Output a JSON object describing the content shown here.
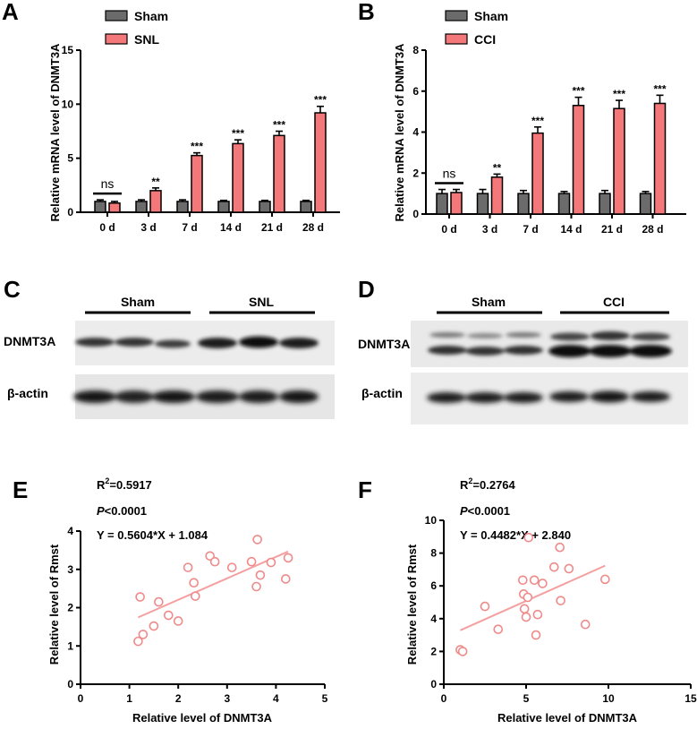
{
  "panels": {
    "a": "A",
    "b": "B",
    "c": "C",
    "d": "D",
    "e": "E",
    "f": "F"
  },
  "colors": {
    "sham": "#6b6b6b",
    "treat": "#f4777a",
    "scatter": "#f08a8a",
    "line": "#f4a0a0"
  },
  "chart_data": [
    {
      "id": "A",
      "type": "bar",
      "categories": [
        "0 d",
        "3 d",
        "7 d",
        "14 d",
        "21 d",
        "28 d"
      ],
      "series": [
        {
          "name": "Sham",
          "values": [
            1.0,
            1.0,
            1.0,
            1.0,
            1.0,
            1.0
          ],
          "errors": [
            0.15,
            0.15,
            0.15,
            0.1,
            0.1,
            0.1
          ]
        },
        {
          "name": "SNL",
          "values": [
            0.85,
            2.0,
            5.25,
            6.35,
            7.1,
            9.2
          ],
          "errors": [
            0.15,
            0.25,
            0.25,
            0.35,
            0.4,
            0.6
          ]
        }
      ],
      "significance": [
        "ns",
        "**",
        "***",
        "***",
        "***",
        "***"
      ],
      "ylabel": "Relative mRNA level of DNMT3A",
      "ylim": [
        0,
        15
      ],
      "yticks": [
        "0",
        "5",
        "10",
        "15"
      ]
    },
    {
      "id": "B",
      "type": "bar",
      "categories": [
        "0 d",
        "3 d",
        "7 d",
        "14 d",
        "21 d",
        "28 d"
      ],
      "series": [
        {
          "name": "Sham",
          "values": [
            1.0,
            1.0,
            1.0,
            1.0,
            1.0,
            1.0
          ],
          "errors": [
            0.2,
            0.2,
            0.15,
            0.1,
            0.15,
            0.1
          ]
        },
        {
          "name": "CCI",
          "values": [
            1.05,
            1.8,
            3.95,
            5.3,
            5.15,
            5.4
          ],
          "errors": [
            0.15,
            0.15,
            0.3,
            0.4,
            0.4,
            0.4
          ]
        }
      ],
      "significance": [
        "ns",
        "**",
        "***",
        "***",
        "***",
        "***"
      ],
      "ylabel": "Relative mRNA level of DNMT3A",
      "ylim": [
        0,
        8
      ],
      "yticks": [
        "0",
        "2",
        "4",
        "6",
        "8"
      ]
    },
    {
      "id": "E",
      "type": "scatter",
      "points": [
        [
          1.18,
          1.12
        ],
        [
          1.22,
          2.28
        ],
        [
          1.28,
          1.3
        ],
        [
          1.5,
          1.52
        ],
        [
          1.6,
          2.15
        ],
        [
          1.8,
          1.8
        ],
        [
          2.0,
          1.65
        ],
        [
          2.2,
          3.05
        ],
        [
          2.32,
          2.65
        ],
        [
          2.35,
          2.3
        ],
        [
          2.65,
          3.35
        ],
        [
          2.75,
          3.2
        ],
        [
          3.1,
          3.05
        ],
        [
          3.5,
          3.2
        ],
        [
          3.6,
          2.55
        ],
        [
          3.62,
          3.78
        ],
        [
          3.68,
          2.85
        ],
        [
          3.9,
          3.18
        ],
        [
          4.2,
          2.75
        ],
        [
          4.25,
          3.3
        ]
      ],
      "fit": {
        "slope": 0.5604,
        "intercept": 1.084,
        "xrange": [
          1.18,
          4.25
        ]
      },
      "r2_prefix": "R",
      "r2_sup": "2",
      "r2_value": "=0.5917",
      "p_label": "P",
      "p_rest": "<0.0001",
      "equation": "Y = 0.5604*X + 1.084",
      "xlabel": "Relative level of DNMT3A",
      "ylabel": "Relative level of Rmst",
      "xlim": [
        0,
        5
      ],
      "ylim": [
        0,
        4
      ],
      "xticks": [
        "0",
        "1",
        "2",
        "3",
        "4",
        "5"
      ],
      "yticks": [
        "0",
        "1",
        "2",
        "3",
        "4"
      ]
    },
    {
      "id": "F",
      "type": "scatter",
      "points": [
        [
          1.0,
          2.1
        ],
        [
          1.15,
          2.0
        ],
        [
          2.5,
          4.75
        ],
        [
          3.3,
          3.35
        ],
        [
          4.8,
          6.35
        ],
        [
          4.85,
          5.5
        ],
        [
          4.9,
          4.6
        ],
        [
          5.0,
          4.1
        ],
        [
          5.1,
          5.3
        ],
        [
          5.15,
          8.95
        ],
        [
          5.5,
          6.35
        ],
        [
          5.6,
          3.0
        ],
        [
          5.7,
          4.25
        ],
        [
          6.0,
          6.15
        ],
        [
          6.7,
          7.15
        ],
        [
          7.05,
          8.35
        ],
        [
          7.1,
          5.1
        ],
        [
          7.6,
          7.05
        ],
        [
          8.6,
          3.65
        ],
        [
          9.8,
          6.4
        ]
      ],
      "fit": {
        "slope": 0.4482,
        "intercept": 2.84,
        "xrange": [
          1.0,
          9.8
        ]
      },
      "r2_prefix": "R",
      "r2_sup": "2",
      "r2_value": "=0.2764",
      "p_label": "P",
      "p_rest": "<0.0001",
      "equation": "Y = 0.4482*X + 2.840",
      "xlabel": "Relative level of DNMT3A",
      "ylabel": "Relative level of Rmst",
      "xlim": [
        0,
        15
      ],
      "ylim": [
        0,
        10
      ],
      "xticks": [
        "0",
        "5",
        "10",
        "15"
      ],
      "yticks": [
        "0",
        "2",
        "4",
        "6",
        "8",
        "10"
      ]
    }
  ],
  "blots": {
    "c": {
      "group1": "Sham",
      "group2": "SNL",
      "row1": "DNMT3A",
      "row2": "β-actin"
    },
    "d": {
      "group1": "Sham",
      "group2": "CCI",
      "row1": "DNMT3A",
      "row2": "β-actin"
    }
  }
}
